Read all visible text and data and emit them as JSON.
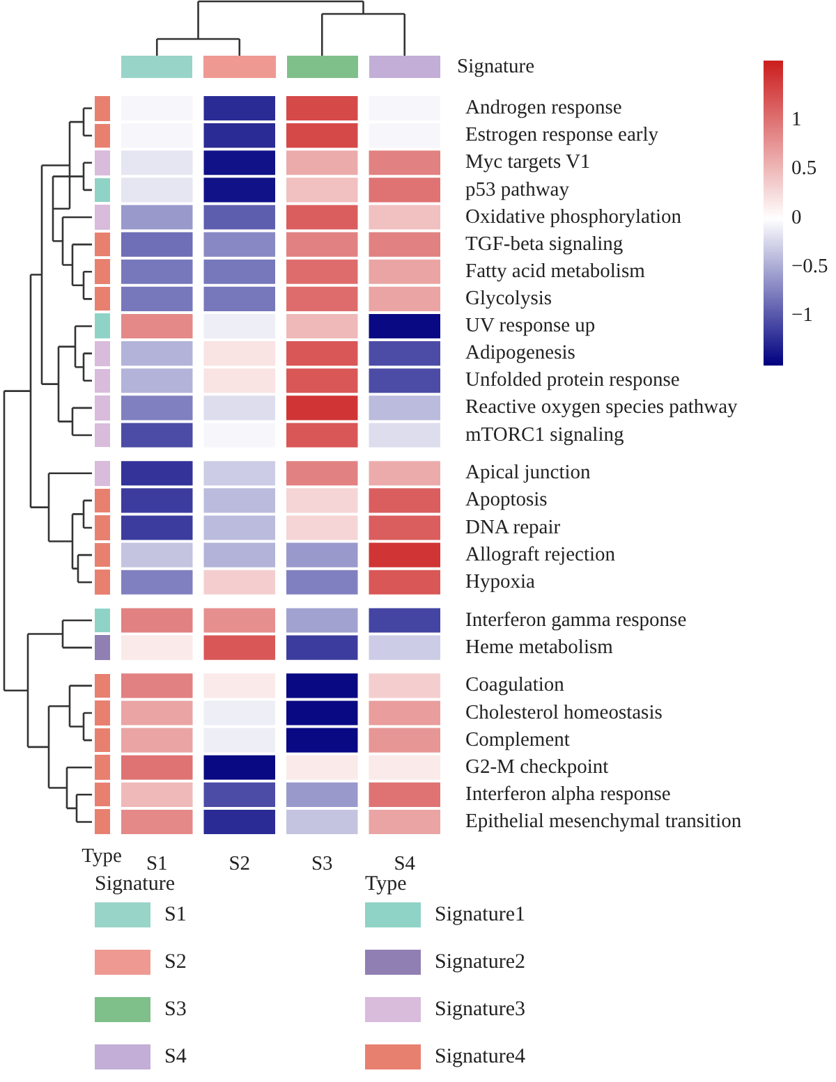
{
  "chart_data": [
    {
      "type": "heatmap",
      "categories": [
        "S1",
        "S2",
        "S3",
        "S4"
      ],
      "y_categories": [
        "Androgen response",
        "Estrogen response early",
        "Myc targets V1",
        "p53 pathway",
        "Oxidative phosphorylation",
        "TGF-beta signaling",
        "Fatty acid metabolism",
        "Glycolysis",
        "UV response up",
        "Adipogenesis",
        "Unfolded protein response",
        "Reactive oxygen species pathway",
        "mTORC1 signaling",
        "Apical junction",
        "Apoptosis",
        "DNA repair",
        "Allograft rejection",
        "Hypoxia",
        "Interferon gamma response",
        "Heme metabolism",
        "Coagulation",
        "Cholesterol homeostasis",
        "Complement",
        "G2-M checkpoint",
        "Interferon alpha response",
        "Epithelial mesenchymal transition"
      ],
      "cells": [
        [
          -0.05,
          -1.25,
          1.3,
          -0.05
        ],
        [
          -0.05,
          -1.25,
          1.3,
          -0.05
        ],
        [
          -0.15,
          -1.4,
          0.6,
          0.9
        ],
        [
          -0.15,
          -1.4,
          0.45,
          1.0
        ],
        [
          -0.6,
          -0.95,
          1.15,
          0.45
        ],
        [
          -0.85,
          -0.7,
          0.9,
          0.9
        ],
        [
          -0.8,
          -0.8,
          1.05,
          0.65
        ],
        [
          -0.8,
          -0.8,
          1.05,
          0.65
        ],
        [
          0.85,
          -0.1,
          0.5,
          -1.45
        ],
        [
          -0.45,
          0.2,
          1.2,
          -1.05
        ],
        [
          -0.45,
          0.2,
          1.2,
          -1.05
        ],
        [
          -0.75,
          -0.2,
          1.45,
          -0.4
        ],
        [
          -1.05,
          -0.05,
          1.2,
          -0.2
        ],
        [
          -1.2,
          -0.3,
          0.9,
          0.6
        ],
        [
          -1.15,
          -0.4,
          0.3,
          1.15
        ],
        [
          -1.15,
          -0.4,
          0.3,
          1.15
        ],
        [
          -0.35,
          -0.45,
          -0.6,
          1.45
        ],
        [
          -0.75,
          0.35,
          -0.75,
          1.2
        ],
        [
          0.9,
          0.8,
          -0.55,
          -1.1
        ],
        [
          0.15,
          1.2,
          -1.15,
          -0.3
        ],
        [
          0.9,
          0.15,
          -1.45,
          0.35
        ],
        [
          0.65,
          -0.1,
          -1.45,
          0.7
        ],
        [
          0.65,
          -0.1,
          -1.45,
          0.75
        ],
        [
          1.0,
          -1.45,
          0.15,
          0.15
        ],
        [
          0.5,
          -1.05,
          -0.6,
          1.0
        ],
        [
          0.85,
          -1.25,
          -0.35,
          0.65
        ]
      ],
      "colors": [
        "#e8806f",
        "#e8806f",
        "#d9bbdc",
        "#8fd3c7",
        "#d9bbdc",
        "#e8806f",
        "#e8806f",
        "#e8806f",
        "#8fd3c7",
        "#d9bbdc",
        "#d9bbdc",
        "#d9bbdc",
        "#d9bbdc",
        "#d9bbdc",
        "#e8806f",
        "#e8806f",
        "#e8806f",
        "#e8806f",
        "#8fd3c7",
        "#8f7fb3",
        "#e8806f",
        "#e8806f",
        "#e8806f",
        "#e8806f",
        "#e8806f",
        "#e8806f"
      ],
      "clim": [
        -1.5,
        1.6
      ],
      "cticks": [
        {
          "value": -1,
          "label": "−1"
        },
        {
          "value": -0.5,
          "label": "−0.5"
        },
        0,
        0.5,
        1
      ],
      "annotations": [
        "Signature",
        "Type"
      ]
    },
    {
      "type": "other",
      "annotations": [
        "Signature",
        "S1",
        "S2",
        "S3",
        "S4",
        "Type",
        "Signature1",
        "Signature2",
        "Signature3",
        "Signature4"
      ],
      "colors": [
        "#99d4c8",
        "#ee9a92",
        "#7fbf8a",
        "#c2aed6",
        "#8fd3c7",
        "#8f7fb3",
        "#d9bbdc",
        "#e8806f"
      ]
    }
  ]
}
